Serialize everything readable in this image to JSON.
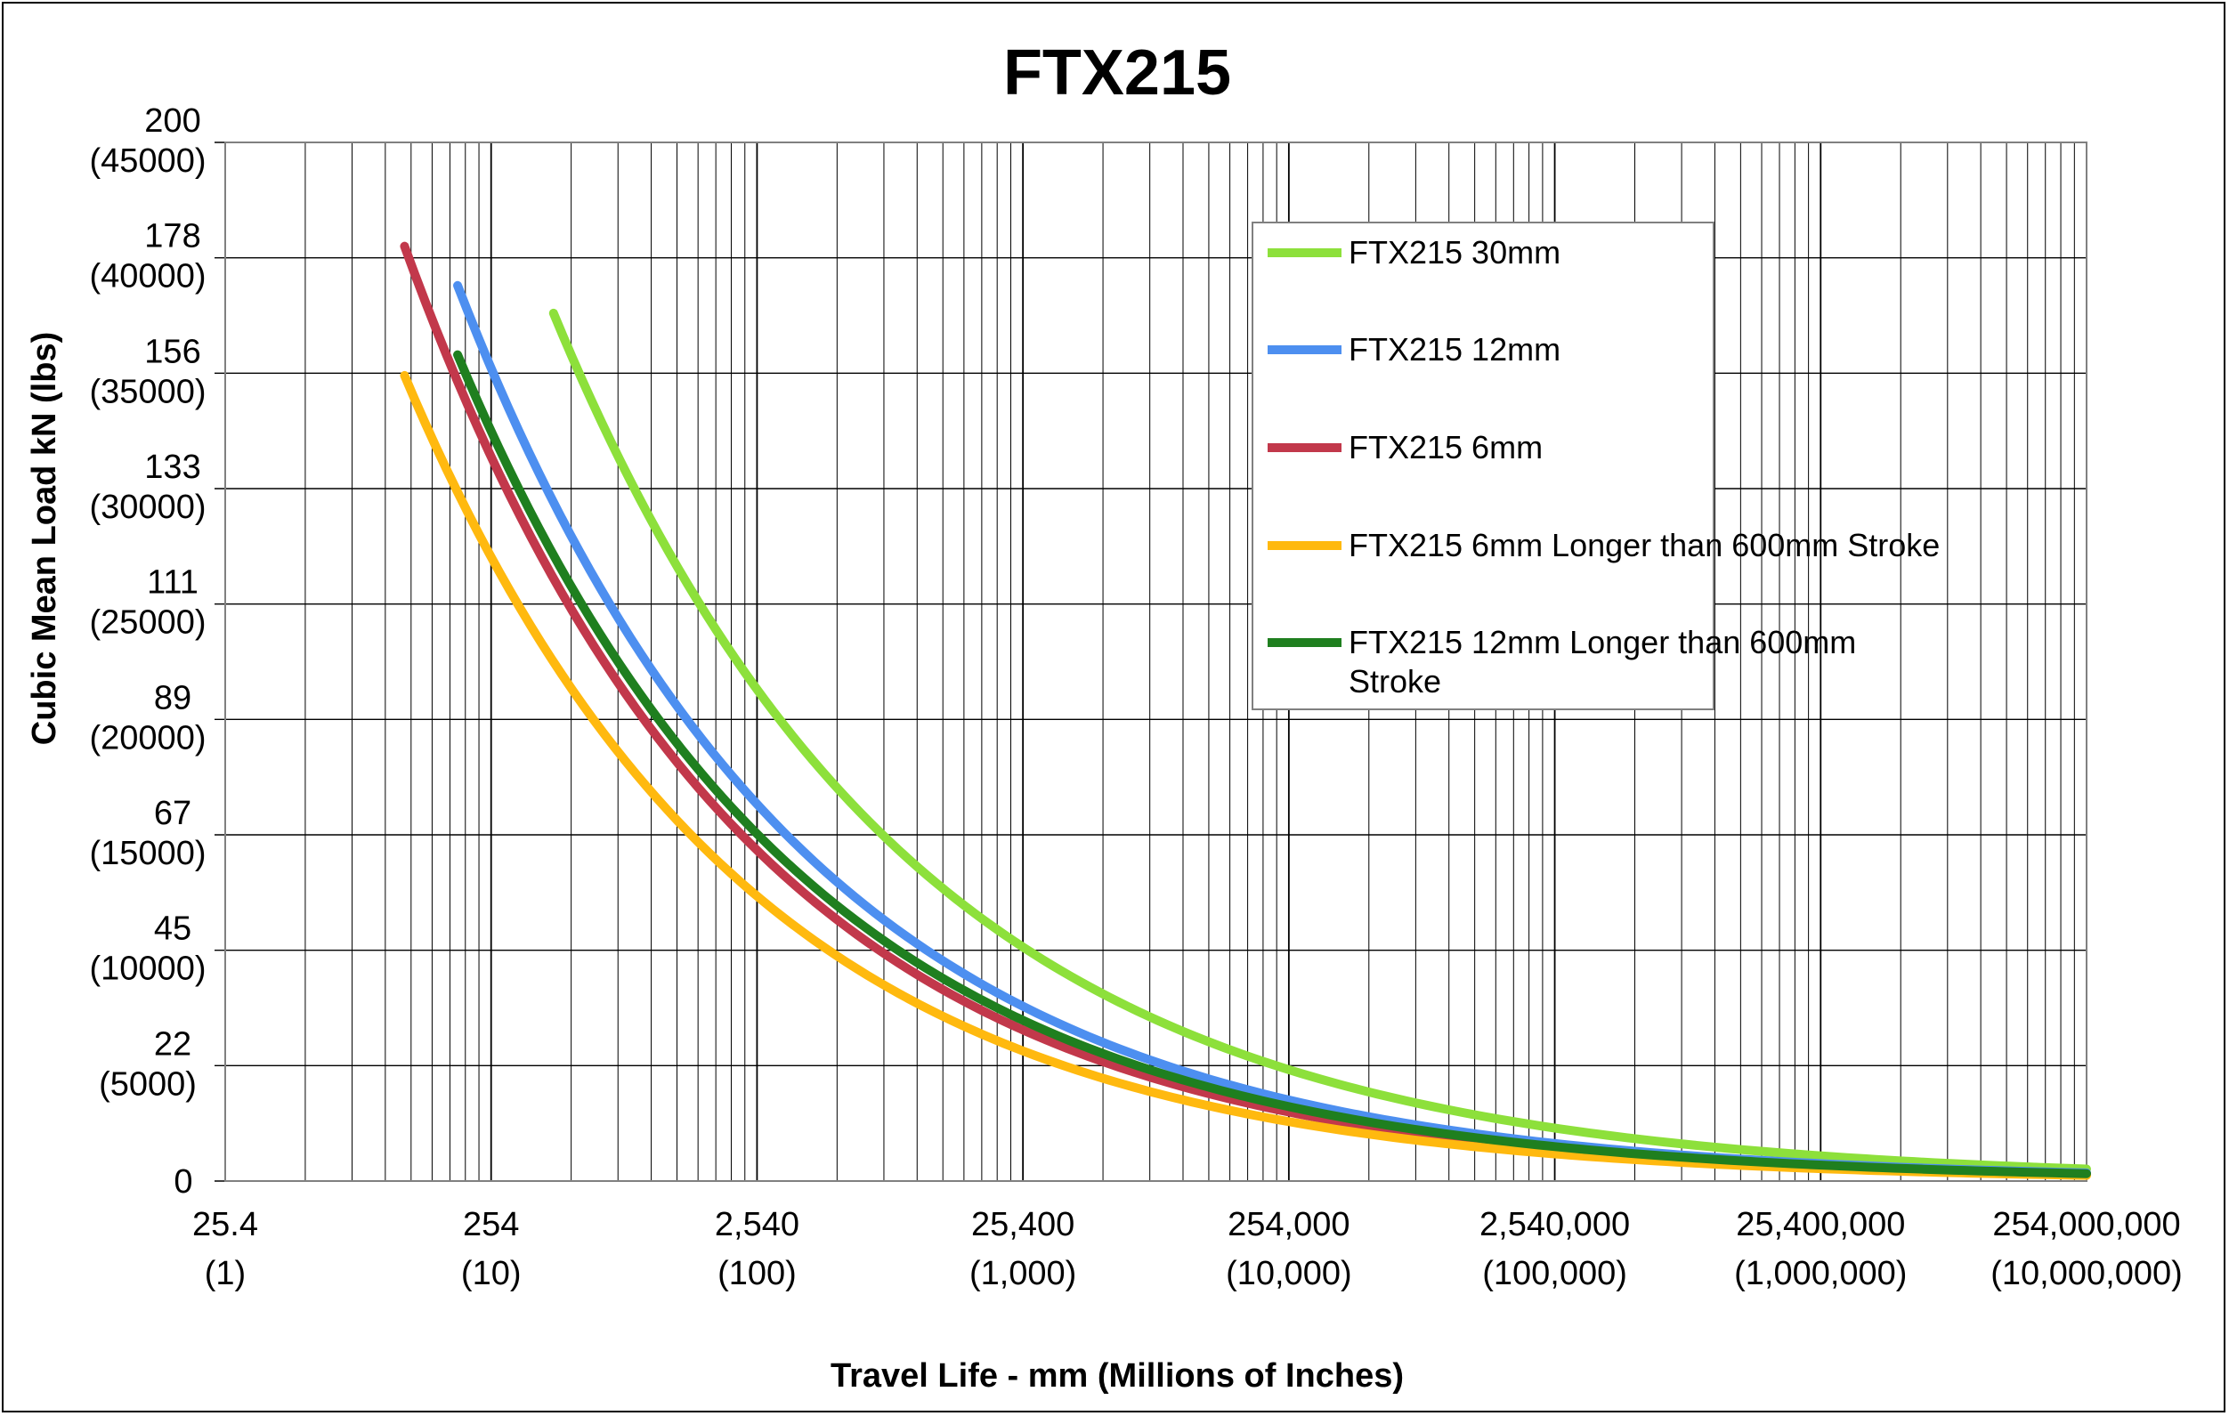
{
  "chart_data": {
    "type": "line",
    "title": "FTX215",
    "xlabel": "Travel Life - mm (Millions of Inches)",
    "ylabel": "Cubic Mean Load kN (lbs)",
    "x_scale": "log",
    "x_units": "mm",
    "y_units": "lbs",
    "xlim": [
      25.4,
      254000000
    ],
    "ylim": [
      0,
      45000
    ],
    "grid": true,
    "legend_position": "upper-right",
    "x_ticks": [
      {
        "value": 25.4,
        "label": "25.4",
        "sublabel": "(1)"
      },
      {
        "value": 254,
        "label": "254",
        "sublabel": "(10)"
      },
      {
        "value": 2540,
        "label": "2,540",
        "sublabel": "(100)"
      },
      {
        "value": 25400,
        "label": "25,400",
        "sublabel": "(1,000)"
      },
      {
        "value": 254000,
        "label": "254,000",
        "sublabel": "(10,000)"
      },
      {
        "value": 2540000,
        "label": "2,540,000",
        "sublabel": "(100,000)"
      },
      {
        "value": 25400000,
        "label": "25,400,000",
        "sublabel": "(1,000,000)"
      },
      {
        "value": 254000000,
        "label": "254,000,000",
        "sublabel": "(10,000,000)"
      }
    ],
    "y_ticks": [
      {
        "value": 0,
        "label": "0",
        "sublabel": ""
      },
      {
        "value": 5000,
        "label": "22",
        "sublabel": "(5000)"
      },
      {
        "value": 10000,
        "label": "45",
        "sublabel": "(10000)"
      },
      {
        "value": 15000,
        "label": "67",
        "sublabel": "(15000)"
      },
      {
        "value": 20000,
        "label": "89",
        "sublabel": "(20000)"
      },
      {
        "value": 25000,
        "label": "111",
        "sublabel": "(25000)"
      },
      {
        "value": 30000,
        "label": "133",
        "sublabel": "(30000)"
      },
      {
        "value": 35000,
        "label": "156",
        "sublabel": "(35000)"
      },
      {
        "value": 40000,
        "label": "178",
        "sublabel": "(40000)"
      },
      {
        "value": 45000,
        "label": "200",
        "sublabel": "(45000)"
      }
    ],
    "series": [
      {
        "name": "FTX215 30mm",
        "color": "#8DE03B",
        "x_start": 436,
        "x_end": 254000000,
        "y_start": 37600,
        "y_end": 520
      },
      {
        "name": "FTX215 12mm",
        "color": "#4D8FF0",
        "x_start": 190,
        "x_end": 254000000,
        "y_start": 38800,
        "y_end": 350
      },
      {
        "name": "FTX215 6mm",
        "color": "#C2384B",
        "x_start": 120,
        "x_end": 254000000,
        "y_start": 40500,
        "y_end": 285
      },
      {
        "name": "FTX215 6mm Longer than 600mm Stroke",
        "color": "#FFB90F",
        "x_start": 120,
        "x_end": 254000000,
        "y_start": 34900,
        "y_end": 245
      },
      {
        "name": "FTX215 12mm Longer than 600mm Stroke",
        "color": "#1F7F1F",
        "x_start": 190,
        "x_end": 254000000,
        "y_start": 35800,
        "y_end": 320
      }
    ],
    "legend": [
      {
        "line1": "FTX215 30mm",
        "line2": ""
      },
      {
        "line1": "FTX215 12mm",
        "line2": ""
      },
      {
        "line1": "FTX215 6mm",
        "line2": ""
      },
      {
        "line1": "FTX215 6mm Longer than 600mm Stroke",
        "line2": ""
      },
      {
        "line1": "FTX215 12mm Longer than 600mm",
        "line2": "Stroke"
      }
    ]
  }
}
